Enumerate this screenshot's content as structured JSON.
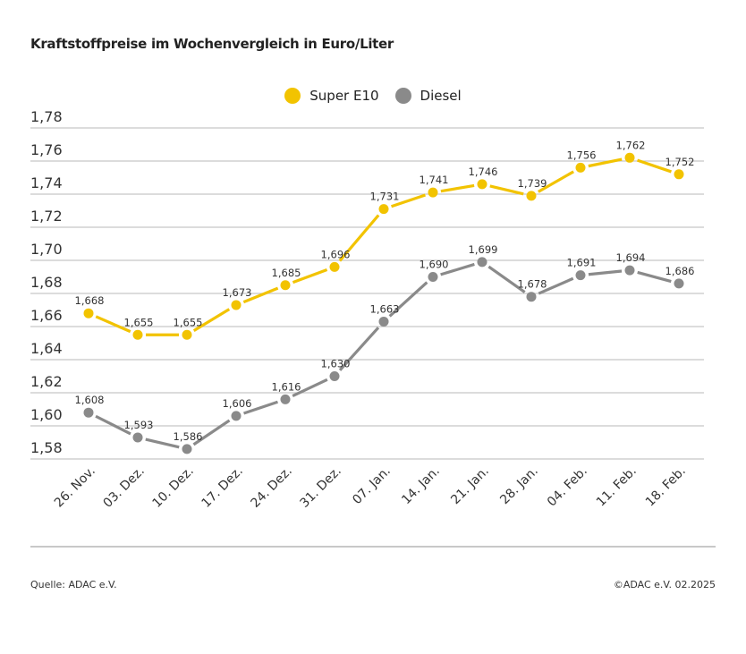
{
  "chart_data": {
    "type": "line",
    "title": "Kraftstoffpreise im Wochenvergleich in Euro/Liter",
    "categories": [
      "26. Nov.",
      "03. Dez.",
      "10. Dez.",
      "17. Dez.",
      "24. Dez.",
      "31. Dez.",
      "07. Jan.",
      "14. Jan.",
      "21. Jan.",
      "28. Jan.",
      "04. Feb.",
      "11. Feb.",
      "18. Feb."
    ],
    "series": [
      {
        "name": "Super E10",
        "color": "#f2c300",
        "values": [
          1.668,
          1.655,
          1.655,
          1.673,
          1.685,
          1.696,
          1.731,
          1.741,
          1.746,
          1.739,
          1.756,
          1.762,
          1.752
        ],
        "labels": [
          "1,668",
          "1,655",
          "1,655",
          "1,673",
          "1,685",
          "1,696",
          "1,731",
          "1,741",
          "1,746",
          "1,739",
          "1,756",
          "1,762",
          "1,752"
        ]
      },
      {
        "name": "Diesel",
        "color": "#8a8a8a",
        "values": [
          1.608,
          1.593,
          1.586,
          1.606,
          1.616,
          1.63,
          1.663,
          1.69,
          1.699,
          1.678,
          1.691,
          1.694,
          1.686
        ],
        "labels": [
          "1,608",
          "1,593",
          "1,586",
          "1,606",
          "1,616",
          "1,630",
          "1,663",
          "1,690",
          "1,699",
          "1,678",
          "1,691",
          "1,694",
          "1,686"
        ]
      }
    ],
    "yticks": [
      1.78,
      1.76,
      1.74,
      1.72,
      1.7,
      1.68,
      1.66,
      1.64,
      1.62,
      1.6,
      1.58
    ],
    "ytick_labels": [
      "1,78",
      "1,76",
      "1,74",
      "1,72",
      "1,70",
      "1,68",
      "1,66",
      "1,64",
      "1,62",
      "1,60",
      "1,58"
    ],
    "ylim": [
      1.58,
      1.78
    ],
    "grid": true,
    "legend": "top-center"
  },
  "footer": {
    "source": "Quelle: ADAC e.V.",
    "copyright": "©ADAC e.V. 02.2025"
  }
}
